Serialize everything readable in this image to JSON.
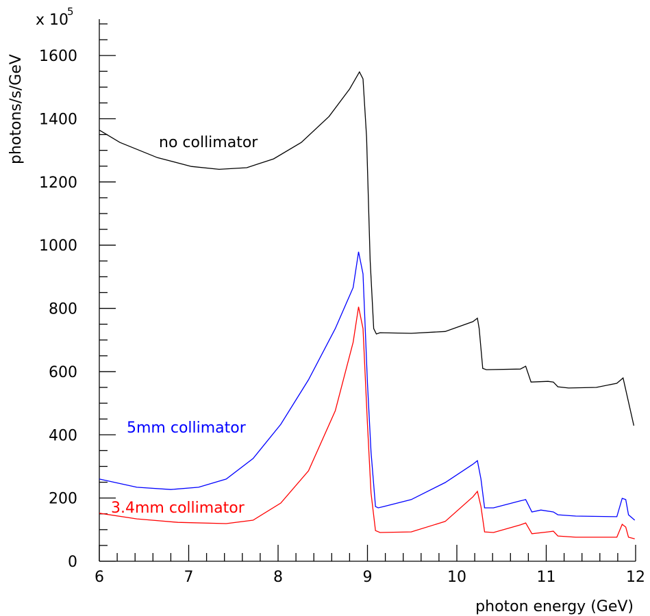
{
  "chart_data": {
    "type": "line",
    "x_label": "photon energy (GeV)",
    "y_label": "photons/s/GeV",
    "y_scale_label": "x 10",
    "y_scale_exponent": "5",
    "xlim": [
      6,
      12
    ],
    "ylim": [
      0,
      1715
    ],
    "xticks": [
      6,
      7,
      8,
      9,
      10,
      11,
      12
    ],
    "yticks": [
      0,
      200,
      400,
      600,
      800,
      1000,
      1200,
      1400,
      1600
    ],
    "x_minor_ticks": [
      6.2,
      6.4,
      6.6,
      6.8,
      7.2,
      7.4,
      7.6,
      7.8,
      8.2,
      8.4,
      8.6,
      8.8,
      9.2,
      9.4,
      9.6,
      9.8,
      10.2,
      10.4,
      10.6,
      10.8,
      11.2,
      11.4,
      11.6,
      11.8
    ],
    "y_minor_ticks": [
      50,
      100,
      150,
      250,
      300,
      350,
      450,
      500,
      550,
      650,
      700,
      750,
      850,
      900,
      950,
      1050,
      1100,
      1150,
      1250,
      1300,
      1350,
      1450,
      1500,
      1550,
      1650,
      1700
    ],
    "series": [
      {
        "name": "no collimator",
        "color": "#000000",
        "x": [
          6.0,
          6.23,
          6.65,
          7.03,
          7.34,
          7.65,
          7.95,
          8.26,
          8.57,
          8.8,
          8.91,
          8.95,
          8.99,
          9.03,
          9.07,
          9.1,
          9.14,
          9.49,
          9.87,
          10.18,
          10.23,
          10.25,
          10.29,
          10.33,
          10.71,
          10.77,
          10.83,
          11.02,
          11.08,
          11.13,
          11.25,
          11.56,
          11.79,
          11.86,
          11.98
        ],
        "values": [
          1364,
          1325,
          1277,
          1249,
          1240,
          1245,
          1273,
          1325,
          1407,
          1494,
          1548,
          1526,
          1342,
          953,
          736,
          719,
          723,
          721,
          727,
          758,
          769,
          736,
          610,
          606,
          608,
          617,
          567,
          569,
          567,
          552,
          548,
          550,
          563,
          580,
          429
        ]
      },
      {
        "name": "5mm collimator",
        "color": "#0000ff",
        "x": [
          6.0,
          6.42,
          6.8,
          7.11,
          7.42,
          7.72,
          8.03,
          8.34,
          8.64,
          8.84,
          8.9,
          8.95,
          9.0,
          9.04,
          9.09,
          9.12,
          9.18,
          9.49,
          9.87,
          10.18,
          10.23,
          10.27,
          10.31,
          10.41,
          10.71,
          10.77,
          10.84,
          10.94,
          11.08,
          11.13,
          11.33,
          11.79,
          11.85,
          11.89,
          11.92,
          11.99
        ],
        "values": [
          260,
          234,
          227,
          234,
          260,
          325,
          433,
          574,
          736,
          866,
          979,
          909,
          563,
          346,
          173,
          169,
          173,
          195,
          249,
          307,
          318,
          260,
          169,
          169,
          191,
          195,
          156,
          162,
          156,
          147,
          143,
          141,
          199,
          195,
          147,
          130
        ]
      },
      {
        "name": "3.4mm collimator",
        "color": "#ff0000",
        "x": [
          6.0,
          6.42,
          6.88,
          7.42,
          7.72,
          8.03,
          8.34,
          8.64,
          8.84,
          8.9,
          8.95,
          9.0,
          9.04,
          9.09,
          9.14,
          9.49,
          9.87,
          10.18,
          10.23,
          10.27,
          10.31,
          10.41,
          10.71,
          10.77,
          10.84,
          11.02,
          11.08,
          11.13,
          11.33,
          11.79,
          11.85,
          11.89,
          11.92,
          11.99
        ],
        "values": [
          152,
          134,
          123,
          119,
          130,
          184,
          286,
          476,
          693,
          805,
          736,
          433,
          216,
          97,
          91,
          93,
          126,
          204,
          221,
          173,
          93,
          91,
          115,
          121,
          87,
          93,
          95,
          80,
          76,
          76,
          117,
          108,
          76,
          71
        ]
      }
    ]
  }
}
